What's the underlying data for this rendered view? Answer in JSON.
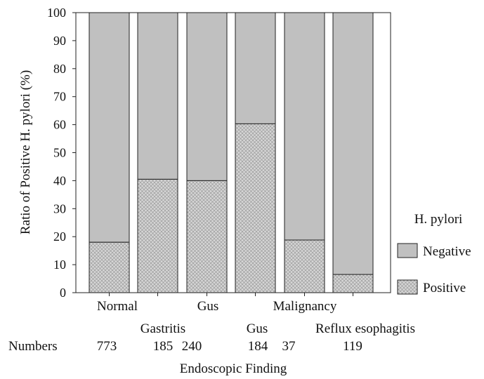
{
  "chart_data": {
    "type": "bar",
    "stacked": true,
    "percent_stacked": true,
    "categories": [
      "Normal",
      "Gastritis",
      "Gus",
      "Gus",
      "Malignancy",
      "Reflux esophagitis"
    ],
    "numbers_label": "Numbers",
    "numbers": [
      "773",
      "185",
      "240",
      "184",
      "37",
      "119"
    ],
    "series": [
      {
        "name": "Positive",
        "values": [
          18,
          40.5,
          40,
          60.3,
          18.8,
          6.5
        ],
        "color": "#d4d4d4",
        "pattern": "crosshatch"
      },
      {
        "name": "Negative",
        "values": [
          82,
          59.5,
          60,
          39.7,
          81.2,
          93.5
        ],
        "color": "#c0c0c0"
      }
    ],
    "xlabel": "Endoscopic Finding",
    "ylabel": "Ratio of Positive H. pylori (%)",
    "ylim": [
      0,
      100
    ],
    "yticks": [
      "0",
      "10",
      "20",
      "30",
      "40",
      "50",
      "60",
      "70",
      "80",
      "90",
      "100"
    ],
    "legend": {
      "title": "H. pylori",
      "position": "right",
      "entries": [
        "Negative",
        "Positive"
      ]
    },
    "grid": false
  }
}
